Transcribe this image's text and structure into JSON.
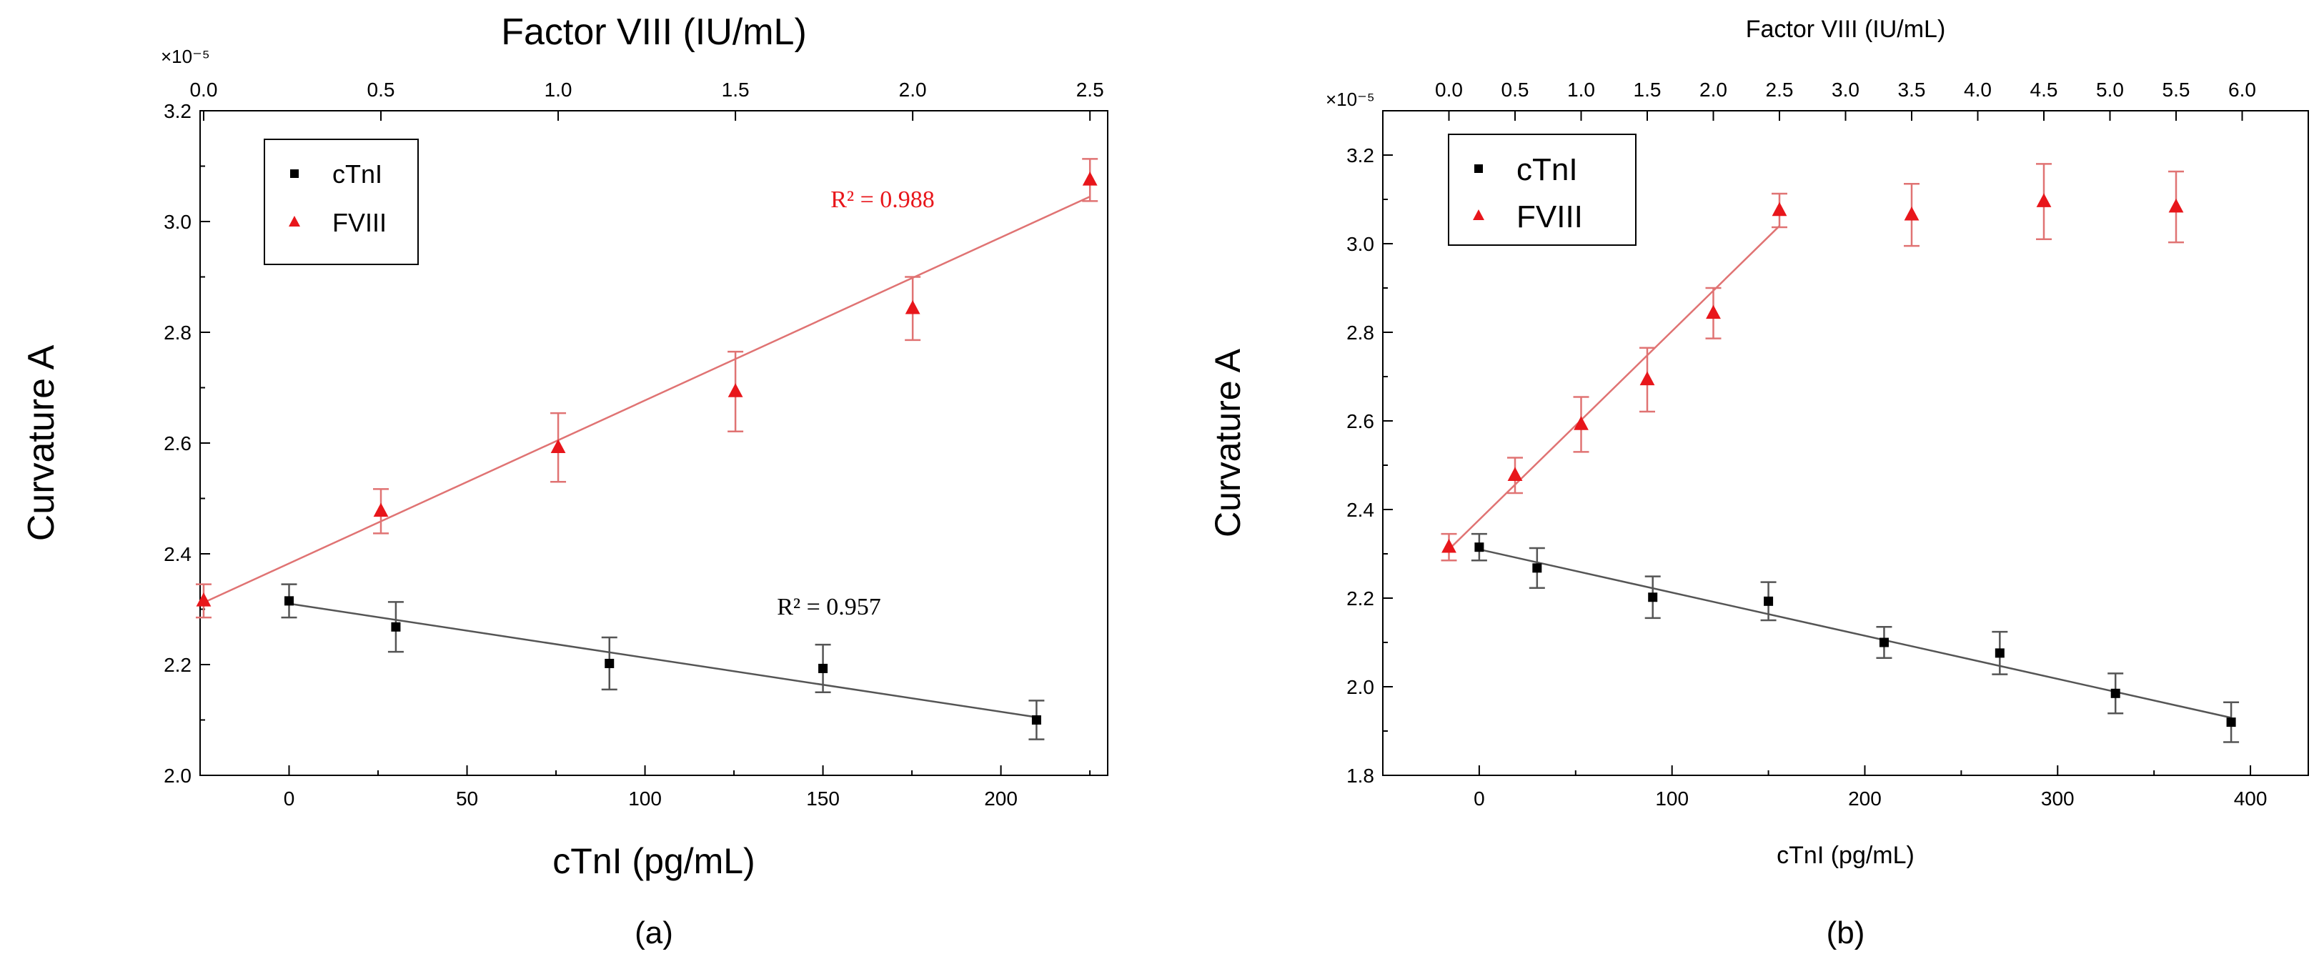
{
  "chart_data": [
    {
      "panel_label": "(a)",
      "type": "scatter",
      "ylabel": "Curvature A",
      "y_multiplier": "×10⁻⁵",
      "ylim": [
        2.0,
        3.2
      ],
      "yticks": [
        "2.0",
        "2.2",
        "2.4",
        "2.6",
        "2.8",
        "3.0",
        "3.2"
      ],
      "bottom_axis": {
        "label": "cTnI (pg/mL)",
        "range": [
          -25,
          230
        ],
        "ticks": [
          "0",
          "50",
          "100",
          "150",
          "200"
        ]
      },
      "top_axis": {
        "label": "Factor VIII (IU/mL)",
        "range": [
          -0.01,
          2.55
        ],
        "ticks": [
          "0.0",
          "0.5",
          "1.0",
          "1.5",
          "2.0",
          "2.5"
        ]
      },
      "legend": {
        "position": "top-left",
        "entries": [
          {
            "name": "cTnI",
            "marker": "square",
            "color": "#000000"
          },
          {
            "name": "FVIII",
            "marker": "triangle",
            "color": "#e8161b"
          }
        ]
      },
      "series": [
        {
          "name": "cTnI",
          "axis": "bottom",
          "color": "#000000",
          "x": [
            0,
            30,
            90,
            150,
            210
          ],
          "y": [
            2.315,
            2.268,
            2.202,
            2.193,
            2.1
          ],
          "err": [
            0.03,
            0.045,
            0.047,
            0.043,
            0.035
          ],
          "fit": {
            "x": [
              0,
              210
            ],
            "y": [
              2.31,
              2.105
            ],
            "r2": "R² = 0.957",
            "color": "#555555"
          }
        },
        {
          "name": "FVIII",
          "axis": "top",
          "color": "#e8161b",
          "x": [
            0.0,
            0.5,
            1.0,
            1.5,
            2.0,
            2.5
          ],
          "y": [
            2.315,
            2.477,
            2.592,
            2.693,
            2.843,
            3.075
          ],
          "err": [
            0.03,
            0.04,
            0.062,
            0.072,
            0.057,
            0.038
          ],
          "fit": {
            "x": [
              0.0,
              2.5
            ],
            "y": [
              2.312,
              3.045
            ],
            "r2": "R² = 0.988",
            "color": "#e07373"
          }
        }
      ]
    },
    {
      "panel_label": "(b)",
      "type": "scatter",
      "ylabel": "Curvature A",
      "y_multiplier": "×10⁻⁵",
      "ylim": [
        1.8,
        3.3
      ],
      "yticks": [
        "1.8",
        "2.0",
        "2.2",
        "2.4",
        "2.6",
        "2.8",
        "3.0",
        "3.2"
      ],
      "bottom_axis": {
        "label": "cTnI (pg/mL)",
        "range": [
          -50,
          430
        ],
        "ticks": [
          "0",
          "100",
          "200",
          "300",
          "400"
        ]
      },
      "top_axis": {
        "label": "Factor VIII (IU/mL)",
        "range": [
          -0.5,
          6.5
        ],
        "ticks": [
          "0.0",
          "0.5",
          "1.0",
          "1.5",
          "2.0",
          "2.5",
          "3.0",
          "3.5",
          "4.0",
          "4.5",
          "5.0",
          "5.5",
          "6.0"
        ]
      },
      "legend": {
        "position": "top-left",
        "entries": [
          {
            "name": "cTnI",
            "marker": "square",
            "color": "#000000"
          },
          {
            "name": "FVIII",
            "marker": "triangle",
            "color": "#e8161b"
          }
        ]
      },
      "series": [
        {
          "name": "cTnI",
          "axis": "bottom",
          "color": "#000000",
          "x": [
            0,
            30,
            90,
            150,
            210,
            270,
            330,
            390
          ],
          "y": [
            2.315,
            2.268,
            2.202,
            2.193,
            2.1,
            2.076,
            1.985,
            1.92
          ],
          "err": [
            0.03,
            0.045,
            0.047,
            0.043,
            0.035,
            0.048,
            0.045,
            0.045
          ],
          "fit": {
            "x": [
              0,
              390
            ],
            "y": [
              2.31,
              1.93
            ],
            "color": "#555555"
          }
        },
        {
          "name": "FVIII",
          "axis": "top",
          "color": "#e8161b",
          "x": [
            0.0,
            0.5,
            1.0,
            1.5,
            2.0,
            2.5,
            3.5,
            4.5,
            5.5
          ],
          "y": [
            2.315,
            2.477,
            2.592,
            2.693,
            2.843,
            3.075,
            3.065,
            3.095,
            3.083
          ],
          "err": [
            0.03,
            0.04,
            0.062,
            0.072,
            0.057,
            0.038,
            0.07,
            0.085,
            0.08
          ],
          "fit": {
            "x": [
              0.0,
              2.5
            ],
            "y": [
              2.31,
              3.04
            ],
            "color": "#e07373"
          }
        }
      ]
    }
  ]
}
